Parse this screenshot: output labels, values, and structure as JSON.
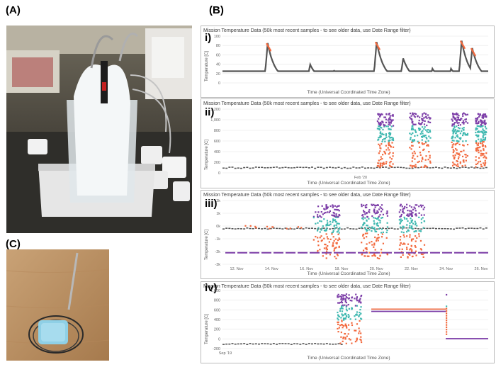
{
  "labels": {
    "a": "(A)",
    "b": "(B)",
    "c": "(C)"
  },
  "charts": [
    {
      "id": "i",
      "roman": "i)",
      "title": "Mission Temperature Data (50k most recent samples - to see older data, use Date Range filter)",
      "xlabel": "Time (Universal Coordinated Time Zone)",
      "ylabel": "Temperature [C]",
      "yticks": [
        "100",
        "80",
        "60",
        "40",
        "20",
        "0"
      ],
      "xticks": [],
      "colors": {
        "base": "#555555",
        "hot": "#f26a3f"
      }
    },
    {
      "id": "ii",
      "roman": "ii)",
      "title": "Mission Temperature Data (50k most recent samples - to see older data, use Date Range filter)",
      "xlabel": "Time (Universal Coordinated Time Zone)",
      "ylabel": "Temperature [C]",
      "yticks": [
        "1,200",
        "1,000",
        "800",
        "600",
        "400",
        "200",
        "0"
      ],
      "xticks": [
        "Feb '20"
      ],
      "colors": {
        "base": "#555555",
        "orange": "#f26a3f",
        "teal": "#3fb8b0",
        "purple": "#7d3fa8"
      }
    },
    {
      "id": "iii",
      "roman": "iii)",
      "title": "Mission Temperature Data (50k most recent samples - to see older data, use Date Range filter)",
      "xlabel": "Time (Universal Coordinated Time Zone)",
      "ylabel": "Temperature [C]",
      "yticks": [
        "2k",
        "1k",
        "0k",
        "-1k",
        "-2k",
        "-3k"
      ],
      "xticks": [
        "12. Nov",
        "14. Nov",
        "16. Nov",
        "18. Nov",
        "20. Nov",
        "22. Nov",
        "24. Nov",
        "26. Nov"
      ],
      "colors": {
        "base": "#555555",
        "orange": "#f26a3f",
        "teal": "#3fb8b0",
        "purple": "#7d3fa8"
      }
    },
    {
      "id": "iv",
      "roman": "iv)",
      "title": "Mission Temperature Data (50k most recent samples - to see older data, use Date Range filter)",
      "xlabel": "Time (Universal Coordinated Time Zone)",
      "ylabel": "Temperature [C]",
      "yticks": [
        "1,000",
        "800",
        "600",
        "400",
        "200",
        "0",
        "-200"
      ],
      "xticks": [
        "Sep '19"
      ],
      "colors": {
        "base": "#555555",
        "orange": "#f26a3f",
        "teal": "#3fb8b0",
        "purple": "#7d3fa8"
      }
    }
  ]
}
